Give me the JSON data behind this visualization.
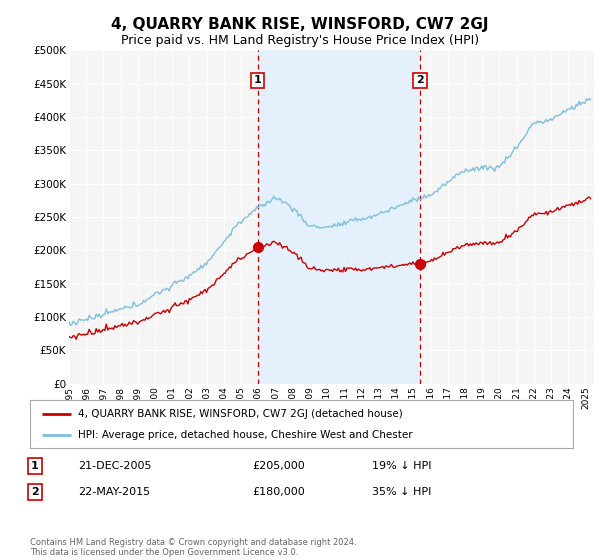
{
  "title": "4, QUARRY BANK RISE, WINSFORD, CW7 2GJ",
  "subtitle": "Price paid vs. HM Land Registry's House Price Index (HPI)",
  "title_fontsize": 11,
  "subtitle_fontsize": 9,
  "ylabel_ticks": [
    "£0",
    "£50K",
    "£100K",
    "£150K",
    "£200K",
    "£250K",
    "£300K",
    "£350K",
    "£400K",
    "£450K",
    "£500K"
  ],
  "ytick_values": [
    0,
    50000,
    100000,
    150000,
    200000,
    250000,
    300000,
    350000,
    400000,
    450000,
    500000
  ],
  "ylim": [
    0,
    500000
  ],
  "xlim_start": 1995.0,
  "xlim_end": 2025.5,
  "hpi_color": "#7fbfdf",
  "price_color": "#cc0000",
  "vline_color": "#cc0000",
  "shade_color": "#ddeeff",
  "background_color": "#ffffff",
  "plot_bg_color": "#f5f5f5",
  "grid_color": "#ffffff",
  "sale1_year": 2005.97,
  "sale1_price": 205000,
  "sale1_label": "1",
  "sale2_year": 2015.39,
  "sale2_price": 180000,
  "sale2_label": "2",
  "legend_label_red": "4, QUARRY BANK RISE, WINSFORD, CW7 2GJ (detached house)",
  "legend_label_blue": "HPI: Average price, detached house, Cheshire West and Chester",
  "table_row1": [
    "1",
    "21-DEC-2005",
    "£205,000",
    "19% ↓ HPI"
  ],
  "table_row2": [
    "2",
    "22-MAY-2015",
    "£180,000",
    "35% ↓ HPI"
  ],
  "footer": "Contains HM Land Registry data © Crown copyright and database right 2024.\nThis data is licensed under the Open Government Licence v3.0.",
  "xtick_years": [
    1995,
    1996,
    1997,
    1998,
    1999,
    2000,
    2001,
    2002,
    2003,
    2004,
    2005,
    2006,
    2007,
    2008,
    2009,
    2010,
    2011,
    2012,
    2013,
    2014,
    2015,
    2016,
    2017,
    2018,
    2019,
    2020,
    2021,
    2022,
    2023,
    2024,
    2025
  ]
}
